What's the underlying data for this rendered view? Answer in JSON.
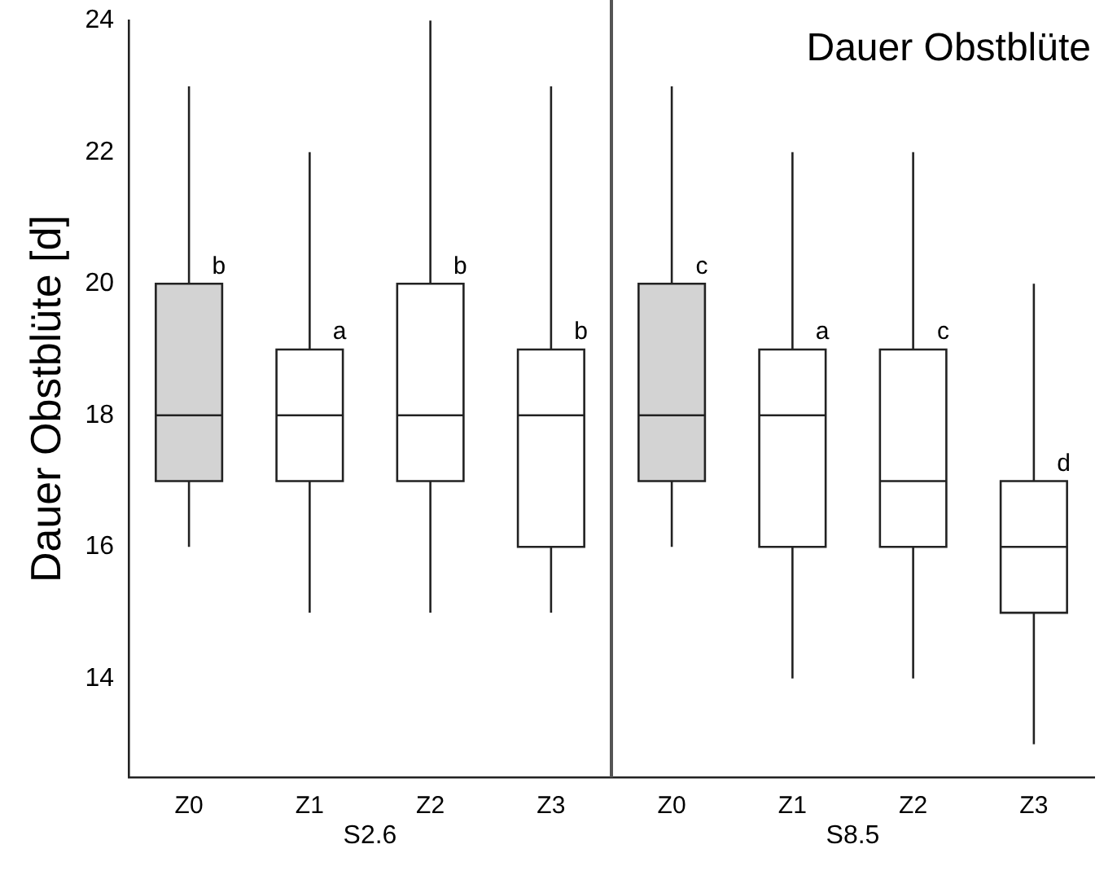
{
  "chart_data": {
    "type": "box",
    "title": "Dauer Obstblüte",
    "ylabel": "Dauer Obstblüte [d]",
    "categories": [
      "Z0",
      "Z1",
      "Z2",
      "Z3",
      "Z0",
      "Z1",
      "Z2",
      "Z3"
    ],
    "series": [
      {
        "colors": [
          "#d3d3d3",
          "#ffffff",
          "#ffffff",
          "#ffffff",
          "#d3d3d3",
          "#ffffff",
          "#ffffff",
          "#ffffff"
        ],
        "value_labels": [
          "b",
          "a",
          "b",
          "b",
          "c",
          "a",
          "c",
          "d"
        ],
        "boxes": [
          {
            "low": 16,
            "q1": 17,
            "median": 18,
            "q3": 20,
            "high": 23
          },
          {
            "low": 15,
            "q1": 17,
            "median": 18,
            "q3": 19,
            "high": 22
          },
          {
            "low": 15,
            "q1": 17,
            "median": 18,
            "q3": 20,
            "high": 24
          },
          {
            "low": 15,
            "q1": 16,
            "median": 18,
            "q3": 19,
            "high": 23
          },
          {
            "low": 16,
            "q1": 17,
            "median": 18,
            "q3": 20,
            "high": 23
          },
          {
            "low": 14,
            "q1": 16,
            "median": 18,
            "q3": 19,
            "high": 22
          },
          {
            "low": 14,
            "q1": 16,
            "median": 17,
            "q3": 19,
            "high": 22
          },
          {
            "low": 13,
            "q1": 15,
            "median": 16,
            "q3": 17,
            "high": 20
          }
        ]
      }
    ],
    "annotations": [
      "S2.6",
      "S8.5"
    ],
    "ylim": [
      12.5,
      24
    ],
    "yticks": [
      14,
      16,
      18,
      20,
      22,
      24
    ],
    "grid": false,
    "legend": false
  }
}
